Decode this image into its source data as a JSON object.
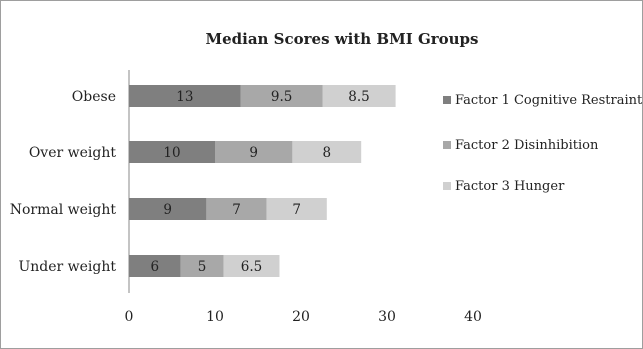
{
  "chart_data": {
    "type": "bar",
    "orientation": "horizontal",
    "stacked": true,
    "title": "Median Scores with BMI Groups",
    "categories": [
      "Under weight",
      "Normal weight",
      "Over weight",
      "Obese"
    ],
    "series": [
      {
        "name": "Factor 1 Cognitive Restraint",
        "values": [
          6,
          9,
          10,
          13
        ],
        "color": "#7f7f7f"
      },
      {
        "name": "Factor 2 Disinhibition",
        "values": [
          5,
          7,
          9,
          9.5
        ],
        "color": "#a8a8a8"
      },
      {
        "name": "Factor 3 Hunger",
        "values": [
          6.5,
          7,
          8,
          8.5
        ],
        "color": "#d0d0d0"
      }
    ],
    "xlim": [
      0,
      40
    ],
    "xticks": [
      0,
      10,
      20,
      30,
      40
    ],
    "grid": false,
    "legend_position": "right"
  }
}
